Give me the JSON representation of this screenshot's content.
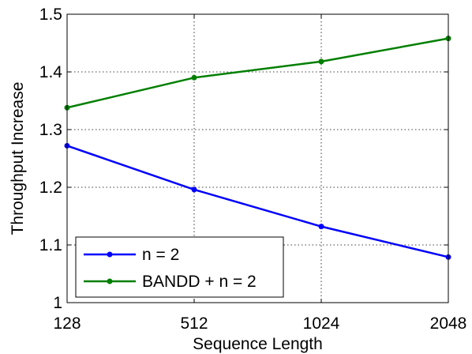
{
  "chart_data": {
    "type": "line",
    "title": "",
    "xlabel": "Sequence Length",
    "ylabel": "Throughput Increase",
    "x": [
      128,
      512,
      1024,
      2048
    ],
    "xtick_labels": [
      "128",
      "512",
      "1024",
      "2048"
    ],
    "ylim": [
      1,
      1.5
    ],
    "yticks": [
      1,
      1.1,
      1.2,
      1.3,
      1.4,
      1.5
    ],
    "ytick_labels": [
      "1",
      "1.1",
      "1.2",
      "1.3",
      "1.4",
      "1.5"
    ],
    "grid": true,
    "legend_position": "bottom-left",
    "series": [
      {
        "name": "n = 2",
        "color": "#0000ff",
        "values": [
          1.272,
          1.196,
          1.132,
          1.079
        ]
      },
      {
        "name": "BANDD + n = 2",
        "color": "#007f00",
        "values": [
          1.338,
          1.39,
          1.418,
          1.458
        ]
      }
    ]
  }
}
